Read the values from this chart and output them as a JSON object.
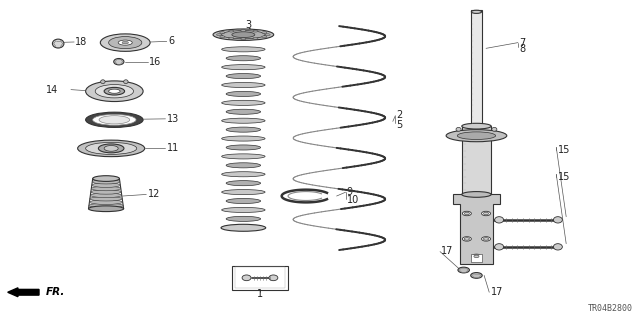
{
  "bg_color": "#ffffff",
  "fig_width": 6.4,
  "fig_height": 3.19,
  "dpi": 100,
  "text_color": "#222222",
  "line_color": "#333333",
  "label_fontsize": 7.0,
  "watermark": "TR04B2800"
}
